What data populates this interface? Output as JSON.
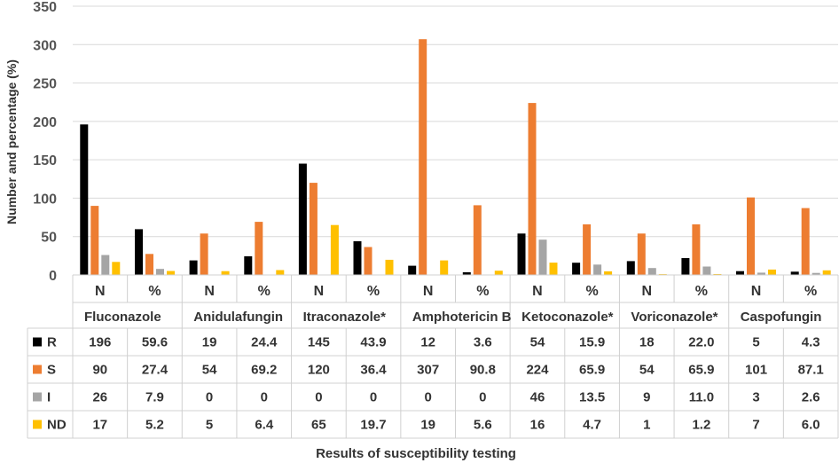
{
  "chart_data": {
    "type": "bar",
    "ylabel": "Number and percentage (%)",
    "xlabel": "Results of susceptibility testing",
    "ylim": [
      0,
      350
    ],
    "yticks": [
      0,
      50,
      100,
      150,
      200,
      250,
      300,
      350
    ],
    "grid": true,
    "legend": "data table rows at bottom-left",
    "drugs": [
      "Fluconazole",
      "Anidulafungin",
      "Itraconazole*",
      "Amphotericin B",
      "Ketoconazole*",
      "Voriconazole*",
      "Caspofungin"
    ],
    "sub_labels": [
      "N",
      "%"
    ],
    "categories": [
      "Fluconazole N",
      "Fluconazole %",
      "Anidulafungin N",
      "Anidulafungin %",
      "Itraconazole* N",
      "Itraconazole* %",
      "Amphotericin B N",
      "Amphotericin B %",
      "Ketoconazole* N",
      "Ketoconazole* %",
      "Voriconazole* N",
      "Voriconazole* %",
      "Caspofungin N",
      "Caspofungin %"
    ],
    "series": [
      {
        "name": "R",
        "color": "#000000",
        "labels": [
          "196",
          "59.6",
          "19",
          "24.4",
          "145",
          "43.9",
          "12",
          "3.6",
          "54",
          "15.9",
          "18",
          "22.0",
          "5",
          "4.3"
        ],
        "values": [
          196,
          59.6,
          19,
          24.4,
          145,
          43.9,
          12,
          3.6,
          54,
          15.9,
          18,
          22.0,
          5,
          4.3
        ]
      },
      {
        "name": "S",
        "color": "#ED7D31",
        "labels": [
          "90",
          "27.4",
          "54",
          "69.2",
          "120",
          "36.4",
          "307",
          "90.8",
          "224",
          "65.9",
          "54",
          "65.9",
          "101",
          "87.1"
        ],
        "values": [
          90,
          27.4,
          54,
          69.2,
          120,
          36.4,
          307,
          90.8,
          224,
          65.9,
          54,
          65.9,
          101,
          87.1
        ]
      },
      {
        "name": "I",
        "color": "#A5A5A5",
        "labels": [
          "26",
          "7.9",
          "0",
          "0",
          "0",
          "0",
          "0",
          "0",
          "46",
          "13.5",
          "9",
          "11.0",
          "3",
          "2.6"
        ],
        "values": [
          26,
          7.9,
          0,
          0,
          0,
          0,
          0,
          0,
          46,
          13.5,
          9,
          11.0,
          3,
          2.6
        ]
      },
      {
        "name": "ND",
        "color": "#FFC000",
        "labels": [
          "17",
          "5.2",
          "5",
          "6.4",
          "65",
          "19.7",
          "19",
          "5.6",
          "16",
          "4.7",
          "1",
          "1.2",
          "7",
          "6.0"
        ],
        "values": [
          17,
          5.2,
          5,
          6.4,
          65,
          19.7,
          19,
          5.6,
          16,
          4.7,
          1,
          1.2,
          7,
          6.0
        ]
      }
    ]
  }
}
